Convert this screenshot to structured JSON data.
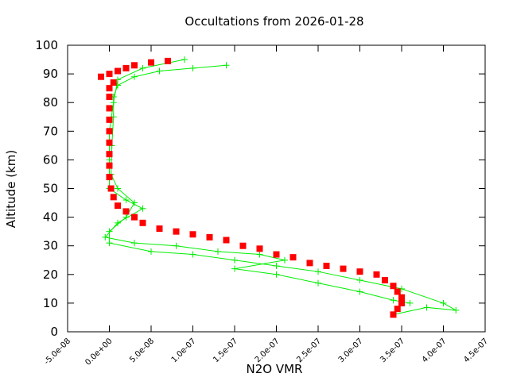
{
  "chart_data": {
    "type": "scatter",
    "title": "Occultations from 2026-01-28",
    "x_label": "N2O VMR",
    "y_label": "Altitude (km)",
    "xlim": [
      -5e-08,
      4.5e-07
    ],
    "ylim": [
      0,
      100
    ],
    "xticks": [
      {
        "value": -5e-08,
        "label": "-5.0e-08"
      },
      {
        "value": 0,
        "label": "0.0e+00"
      },
      {
        "value": 5e-08,
        "label": "5.0e-08"
      },
      {
        "value": 1e-07,
        "label": "1.0e-07"
      },
      {
        "value": 1.5e-07,
        "label": "1.5e-07"
      },
      {
        "value": 2e-07,
        "label": "2.0e-07"
      },
      {
        "value": 2.5e-07,
        "label": "2.5e-07"
      },
      {
        "value": 3e-07,
        "label": "3.0e-07"
      },
      {
        "value": 3.5e-07,
        "label": "3.5e-07"
      },
      {
        "value": 4e-07,
        "label": "4.0e-07"
      },
      {
        "value": 4.5e-07,
        "label": "4.5e-07"
      }
    ],
    "yticks": [
      0,
      10,
      20,
      30,
      40,
      50,
      60,
      70,
      80,
      90,
      100
    ],
    "grid": false,
    "series": [
      {
        "color": "#00ee00",
        "marker": "plus",
        "line": true,
        "x": [
          1.4e-07,
          1e-07,
          6e-08,
          3e-08,
          1e-08,
          5e-09,
          5e-09,
          3e-09,
          2e-09,
          1e-08,
          3e-08,
          2e-08,
          0,
          0,
          5e-08,
          1e-07,
          1.5e-07,
          2e-07,
          2.5e-07,
          3e-07,
          3.5e-07,
          4e-07,
          4.15e-07,
          3.8e-07,
          3.4e-07
        ],
        "values": [
          93,
          92,
          91,
          89,
          86,
          82,
          75,
          65,
          55,
          50,
          45,
          40,
          35,
          31,
          28,
          27,
          25,
          23,
          21,
          18,
          15,
          10,
          7.5,
          8.5,
          6
        ]
      },
      {
        "color": "#00ee00",
        "marker": "plus",
        "line": true,
        "x": [
          9e-08,
          4e-08,
          1e-08,
          5e-09,
          0,
          0,
          0,
          2e-08,
          4e-08,
          1e-08,
          -5e-09,
          3e-08,
          8e-08,
          1.3e-07,
          1.8e-07,
          2.1e-07,
          1.5e-07,
          2e-07,
          2.5e-07,
          3e-07,
          3.4e-07,
          3.6e-07
        ],
        "values": [
          95,
          92,
          88,
          80,
          70,
          60,
          50,
          46,
          43,
          38,
          33,
          31,
          30,
          28,
          27,
          25,
          22,
          20,
          17,
          14,
          11,
          10
        ]
      },
      {
        "color": "#ff0000",
        "marker": "square",
        "line": false,
        "x": [
          -1e-08,
          0,
          1e-08,
          2e-08,
          3e-08,
          5e-08,
          7e-08,
          5e-09,
          0,
          0,
          0,
          0,
          0,
          0,
          0,
          0,
          0,
          2e-09,
          5e-09,
          1e-08,
          2e-08,
          3e-08,
          4e-08,
          6e-08,
          8e-08,
          1e-07,
          1.2e-07,
          1.4e-07,
          1.6e-07,
          1.8e-07,
          2e-07,
          2.2e-07,
          2.4e-07,
          2.6e-07,
          2.8e-07,
          3e-07,
          3.2e-07,
          3.3e-07,
          3.4e-07,
          3.45e-07,
          3.5e-07,
          3.5e-07,
          3.45e-07,
          3.4e-07
        ],
        "values": [
          89,
          90,
          91,
          92,
          93,
          94,
          94.5,
          87,
          85,
          82,
          78,
          74,
          70,
          66,
          62,
          58,
          54,
          50,
          47,
          44,
          42,
          40,
          38,
          36,
          35,
          34,
          33,
          32,
          30,
          29,
          27,
          26,
          24,
          23,
          22,
          21,
          20,
          18,
          16,
          14,
          12,
          10,
          8,
          6
        ]
      }
    ]
  }
}
